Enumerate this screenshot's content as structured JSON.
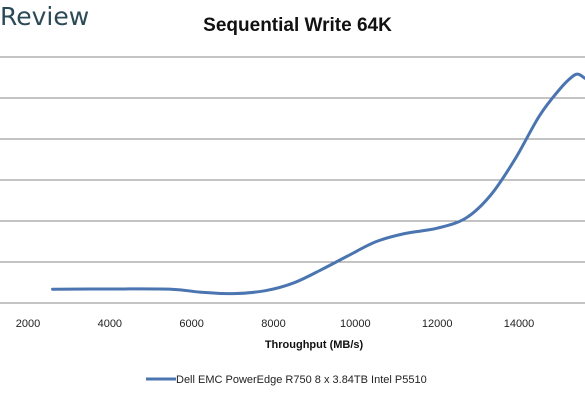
{
  "brand": {
    "text": "Review"
  },
  "chart_data": {
    "type": "line",
    "title": "Sequential Write 64K",
    "xlabel": "Throughput (MB/s)",
    "ylabel": "",
    "xlim": [
      1500,
      15700
    ],
    "x_ticks": [
      2000,
      4000,
      6000,
      8000,
      10000,
      12000,
      14000
    ],
    "ylim": [
      0,
      1
    ],
    "grid": true,
    "legend_position": "bottom",
    "series": [
      {
        "name": "Dell EMC PowerEdge R750 8 x 3.84TB Intel P5510",
        "color": "#4a75b0",
        "points": [
          [
            2600,
            0.056
          ],
          [
            4000,
            0.057
          ],
          [
            5500,
            0.056
          ],
          [
            6200,
            0.044
          ],
          [
            7000,
            0.038
          ],
          [
            7800,
            0.05
          ],
          [
            8500,
            0.082
          ],
          [
            9200,
            0.138
          ],
          [
            9800,
            0.19
          ],
          [
            10500,
            0.249
          ],
          [
            11200,
            0.282
          ],
          [
            12000,
            0.304
          ],
          [
            12700,
            0.345
          ],
          [
            13300,
            0.437
          ],
          [
            13900,
            0.584
          ],
          [
            14500,
            0.761
          ],
          [
            15000,
            0.87
          ],
          [
            15300,
            0.92
          ],
          [
            15450,
            0.93
          ],
          [
            15600,
            0.915
          ],
          [
            15700,
            0.905
          ]
        ]
      }
    ]
  }
}
